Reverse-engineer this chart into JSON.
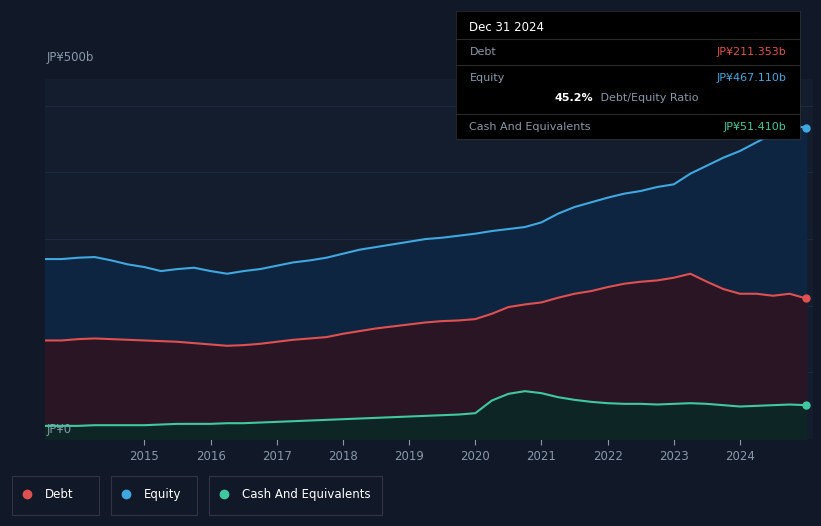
{
  "bg_color": "#111827",
  "plot_bg": "#131d2e",
  "grid_color": "#1e2d3d",
  "ylabel_500": "JP¥500b",
  "ylabel_0": "JP¥0",
  "tooltip": {
    "date": "Dec 31 2024",
    "debt_label": "Debt",
    "debt_value": "JP¥211.353b",
    "equity_label": "Equity",
    "equity_value": "JP¥467.110b",
    "ratio_bold": "45.2%",
    "ratio_rest": " Debt/Equity Ratio",
    "cash_label": "Cash And Equivalents",
    "cash_value": "JP¥51.410b"
  },
  "debt_color": "#e05050",
  "equity_color": "#3fa8e0",
  "cash_color": "#40c9a0",
  "equity_fill": "#0d2540",
  "debt_fill": "#2a1525",
  "cash_fill": "#0d2525",
  "legend": {
    "debt": "Debt",
    "equity": "Equity",
    "cash": "Cash And Equivalents"
  },
  "years": [
    2013.5,
    2013.75,
    2014.0,
    2014.25,
    2014.5,
    2014.75,
    2015.0,
    2015.25,
    2015.5,
    2015.75,
    2016.0,
    2016.25,
    2016.5,
    2016.75,
    2017.0,
    2017.25,
    2017.5,
    2017.75,
    2018.0,
    2018.25,
    2018.5,
    2018.75,
    2019.0,
    2019.25,
    2019.5,
    2019.75,
    2020.0,
    2020.25,
    2020.5,
    2020.75,
    2021.0,
    2021.25,
    2021.5,
    2021.75,
    2022.0,
    2022.25,
    2022.5,
    2022.75,
    2023.0,
    2023.25,
    2023.5,
    2023.75,
    2024.0,
    2024.25,
    2024.5,
    2024.75,
    2025.0
  ],
  "equity": [
    270,
    270,
    272,
    273,
    268,
    262,
    258,
    252,
    255,
    257,
    252,
    248,
    252,
    255,
    260,
    265,
    268,
    272,
    278,
    284,
    288,
    292,
    296,
    300,
    302,
    305,
    308,
    312,
    315,
    318,
    325,
    338,
    348,
    355,
    362,
    368,
    372,
    378,
    382,
    398,
    410,
    422,
    432,
    445,
    458,
    470,
    467
  ],
  "debt": [
    148,
    148,
    150,
    151,
    150,
    149,
    148,
    147,
    146,
    144,
    142,
    140,
    141,
    143,
    146,
    149,
    151,
    153,
    158,
    162,
    166,
    169,
    172,
    175,
    177,
    178,
    180,
    188,
    198,
    202,
    205,
    212,
    218,
    222,
    228,
    233,
    236,
    238,
    242,
    248,
    236,
    225,
    218,
    218,
    215,
    218,
    211
  ],
  "cash": [
    20,
    20,
    20,
    21,
    21,
    21,
    21,
    22,
    23,
    23,
    23,
    24,
    24,
    25,
    26,
    27,
    28,
    29,
    30,
    31,
    32,
    33,
    34,
    35,
    36,
    37,
    39,
    58,
    68,
    72,
    69,
    63,
    59,
    56,
    54,
    53,
    53,
    52,
    53,
    54,
    53,
    51,
    49,
    50,
    51,
    52,
    51
  ],
  "ylim": [
    0,
    540
  ],
  "xlim_start": 2013.5,
  "xlim_end": 2025.1,
  "x_ticks": [
    2015,
    2016,
    2017,
    2018,
    2019,
    2020,
    2021,
    2022,
    2023,
    2024
  ],
  "x_tick_labels": [
    "2015",
    "2016",
    "2017",
    "2018",
    "2019",
    "2020",
    "2021",
    "2022",
    "2023",
    "2024"
  ],
  "h_grid_vals": [
    100,
    200,
    300,
    400,
    500
  ]
}
